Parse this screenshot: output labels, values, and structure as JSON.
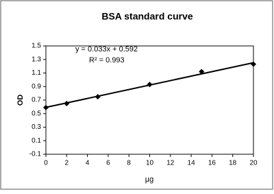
{
  "chart_data": {
    "type": "scatter",
    "title": "BSA standard curve",
    "x_label": "µg",
    "y_label": "OD",
    "x": [
      0,
      2,
      5,
      10,
      15,
      20
    ],
    "series": [
      {
        "name": "BSA",
        "color": "#000000",
        "values": [
          0.59,
          0.65,
          0.75,
          0.93,
          1.12,
          1.23
        ]
      }
    ],
    "trendline": {
      "slope": 0.033,
      "intercept": 0.592,
      "equation": "y = 0.033x + 0.592",
      "r2_label": "R² = 0.993"
    },
    "xlim": [
      0,
      20
    ],
    "xticks": [
      0,
      2,
      4,
      6,
      8,
      10,
      12,
      14,
      16,
      18,
      20
    ],
    "ylim": [
      -0.1,
      1.5
    ],
    "yticks": [
      -0.1,
      0.1,
      0.3,
      0.5,
      0.7,
      0.9,
      1.1,
      1.3,
      1.5
    ]
  }
}
